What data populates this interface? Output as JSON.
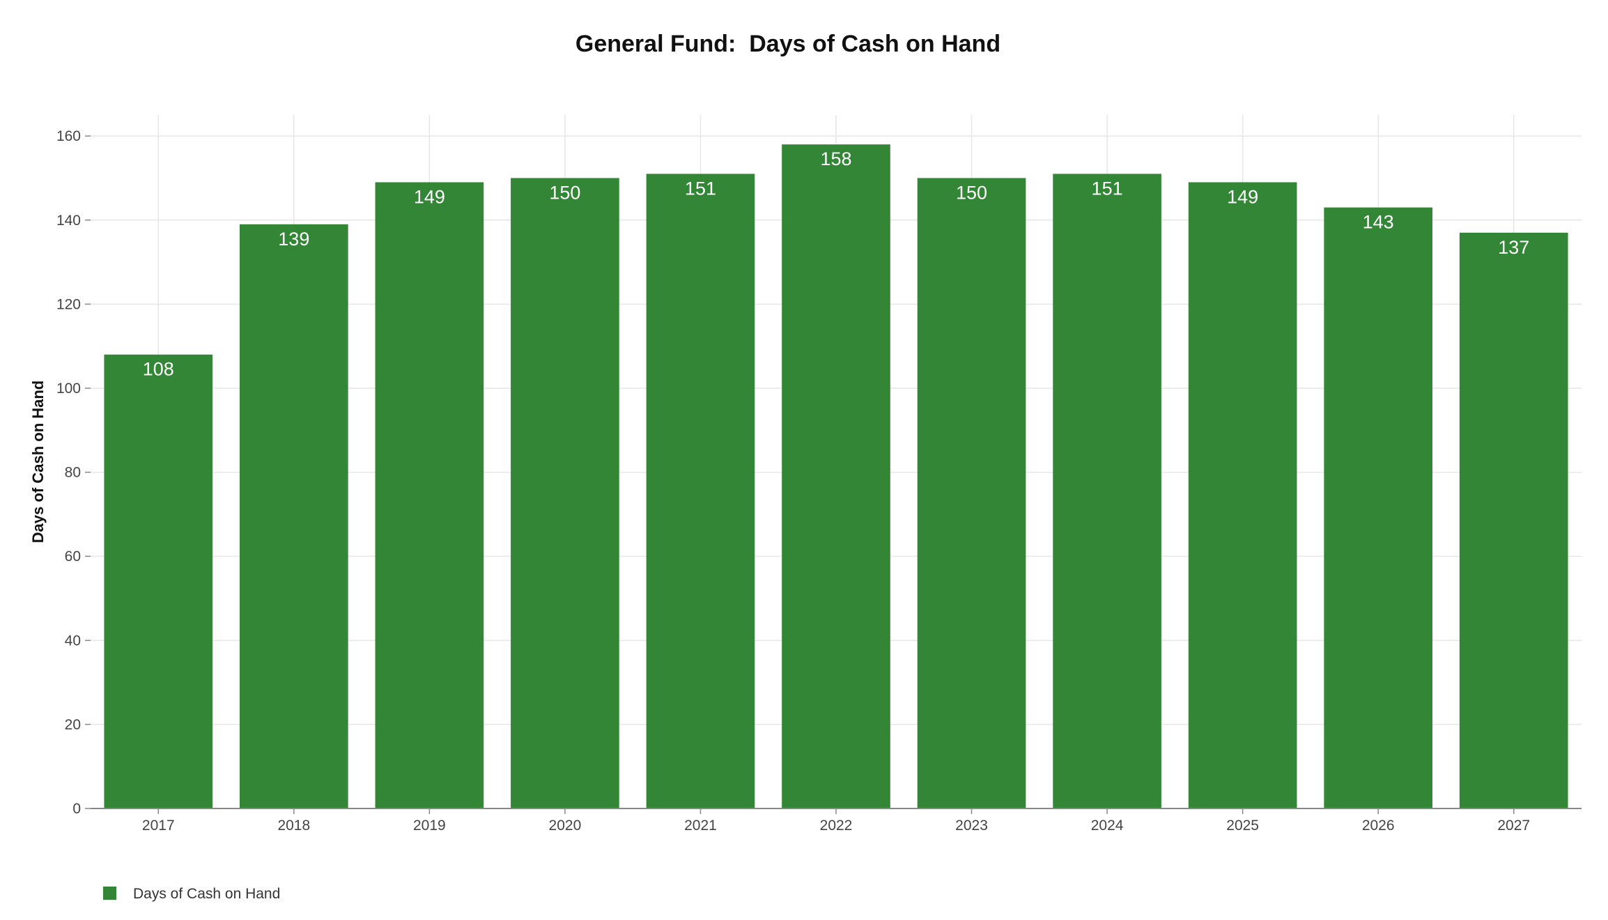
{
  "chart_data": {
    "type": "bar",
    "title": "General Fund:  Days of Cash on Hand",
    "xlabel": "",
    "ylabel": "Days of Cash on Hand",
    "categories": [
      "2017",
      "2018",
      "2019",
      "2020",
      "2021",
      "2022",
      "2023",
      "2024",
      "2025",
      "2026",
      "2027"
    ],
    "series": [
      {
        "name": "Days of Cash on Hand",
        "values": [
          108,
          139,
          149,
          150,
          151,
          158,
          150,
          151,
          149,
          143,
          137
        ],
        "color": "#338635"
      }
    ],
    "ylim": [
      0,
      165
    ],
    "yticks": [
      0,
      20,
      40,
      60,
      80,
      100,
      120,
      140,
      160
    ],
    "grid": true,
    "legend_position": "bottom-left"
  }
}
